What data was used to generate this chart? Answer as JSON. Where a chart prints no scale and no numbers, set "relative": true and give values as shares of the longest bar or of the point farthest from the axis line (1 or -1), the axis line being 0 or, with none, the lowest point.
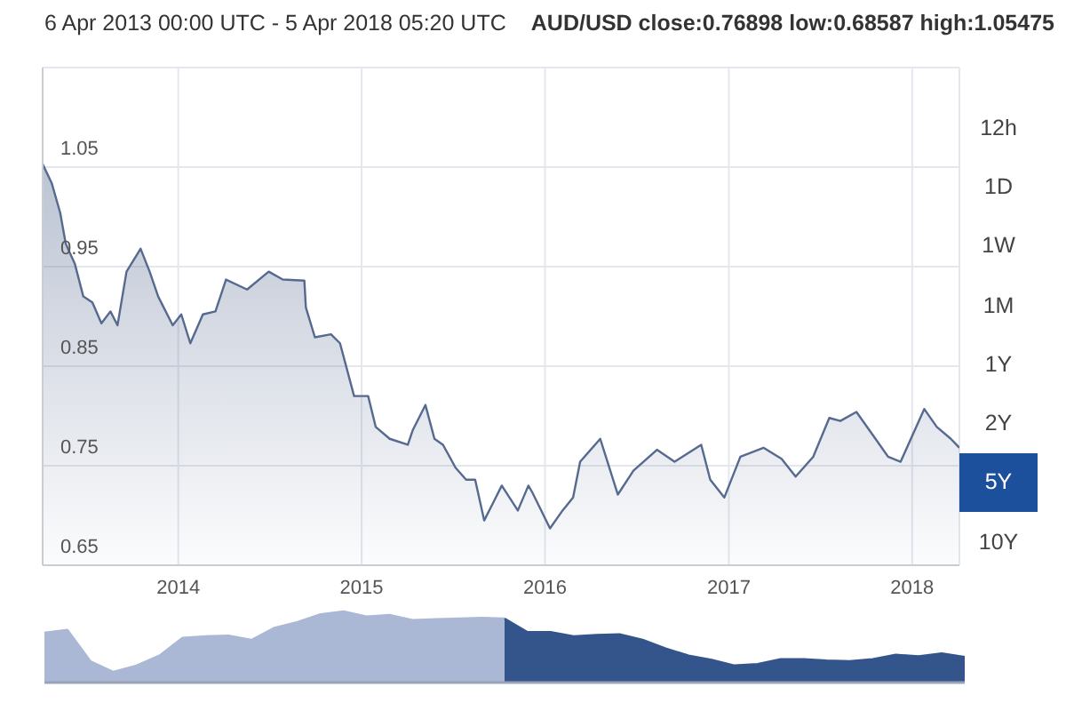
{
  "chart_data": [
    {
      "type": "area",
      "title": "6 Apr 2013 00:00 UTC - 5 Apr 2018 05:20 UTC",
      "subtitle": "AUD/USD close:0.76898 low:0.68587 high:1.05475",
      "color": "#56698f",
      "grid": true,
      "xlim": [
        "2013-04-06",
        "2018-04-05"
      ],
      "xticks": [
        "2014",
        "2015",
        "2016",
        "2017",
        "2018"
      ],
      "ylim": [
        0.65,
        1.15
      ],
      "yticks": [
        0.65,
        0.75,
        0.85,
        0.95,
        1.05
      ],
      "annotations": [
        "12h",
        "1D",
        "1W",
        "1M",
        "1Y",
        "2Y",
        "5Y",
        "10Y"
      ],
      "x": [
        "2013-04-06",
        "2013-04-24",
        "2013-05-11",
        "2013-05-22",
        "2013-06-09",
        "2013-06-26",
        "2013-07-14",
        "2013-08-01",
        "2013-08-19",
        "2013-09-02",
        "2013-09-20",
        "2013-10-18",
        "2013-11-05",
        "2013-11-22",
        "2013-12-21",
        "2014-01-07",
        "2014-01-25",
        "2014-02-19",
        "2014-03-16",
        "2014-04-06",
        "2014-05-18",
        "2014-06-30",
        "2014-07-28",
        "2014-09-09",
        "2014-09-12",
        "2014-09-30",
        "2014-11-01",
        "2014-11-19",
        "2014-12-17",
        "2015-01-14",
        "2015-01-29",
        "2015-02-26",
        "2015-04-03",
        "2015-04-13",
        "2015-05-08",
        "2015-05-26",
        "2015-06-12",
        "2015-07-07",
        "2015-07-28",
        "2015-08-15",
        "2015-09-02",
        "2015-09-20",
        "2015-10-07",
        "2015-11-08",
        "2015-11-29",
        "2015-12-07",
        "2016-01-11",
        "2016-02-05",
        "2016-02-26",
        "2016-03-11",
        "2016-04-20",
        "2016-05-25",
        "2016-06-25",
        "2016-08-11",
        "2016-09-15",
        "2016-11-07",
        "2016-11-25",
        "2016-12-23",
        "2017-01-24",
        "2017-03-11",
        "2017-04-16",
        "2017-05-14",
        "2017-06-18",
        "2017-07-20",
        "2017-08-11",
        "2017-09-12",
        "2017-10-20",
        "2017-11-14",
        "2017-12-09",
        "2018-01-25",
        "2018-02-19",
        "2018-03-19",
        "2018-04-05"
      ],
      "values": [
        1.053,
        1.034,
        1.004,
        0.973,
        0.953,
        0.92,
        0.914,
        0.893,
        0.905,
        0.891,
        0.945,
        0.968,
        0.945,
        0.92,
        0.891,
        0.902,
        0.873,
        0.902,
        0.905,
        0.937,
        0.927,
        0.945,
        0.937,
        0.936,
        0.909,
        0.879,
        0.882,
        0.873,
        0.82,
        0.82,
        0.789,
        0.777,
        0.771,
        0.786,
        0.811,
        0.777,
        0.771,
        0.748,
        0.736,
        0.736,
        0.695,
        0.713,
        0.73,
        0.705,
        0.73,
        0.723,
        0.687,
        0.705,
        0.718,
        0.754,
        0.777,
        0.721,
        0.745,
        0.766,
        0.754,
        0.771,
        0.736,
        0.718,
        0.759,
        0.768,
        0.757,
        0.739,
        0.759,
        0.798,
        0.795,
        0.804,
        0.777,
        0.759,
        0.754,
        0.807,
        0.789,
        0.777,
        0.768
      ]
    },
    {
      "type": "area",
      "relative": true,
      "categories": [
        null,
        null,
        null,
        null,
        null,
        null,
        null,
        null,
        null,
        null,
        null,
        null,
        null,
        null,
        null,
        null,
        null,
        null,
        null,
        null,
        null,
        null,
        null,
        null,
        null,
        null,
        null,
        null,
        null,
        null,
        null,
        null,
        null,
        null,
        null,
        null,
        null,
        null,
        null,
        null,
        null
      ],
      "series": [
        {
          "color": "#aab8d6",
          "values": [
            0.7,
            0.74,
            0.3,
            0.15,
            0.24,
            0.38,
            0.63,
            0.65,
            0.66,
            0.6,
            0.77,
            0.85,
            0.96,
            1,
            0.93,
            0.95,
            0.88,
            0.89,
            0.9,
            0.91,
            0.9,
            null,
            null,
            null,
            null,
            null,
            null,
            null,
            null,
            null,
            null,
            null,
            null,
            null,
            null,
            null,
            null,
            null,
            null,
            null,
            null
          ]
        },
        {
          "color": "#34548c",
          "values": [
            null,
            null,
            null,
            null,
            null,
            null,
            null,
            null,
            null,
            null,
            null,
            null,
            null,
            null,
            null,
            null,
            null,
            null,
            null,
            null,
            0.9,
            0.71,
            0.71,
            0.65,
            0.67,
            0.68,
            0.6,
            0.48,
            0.38,
            0.32,
            0.24,
            0.26,
            0.33,
            0.33,
            0.31,
            0.3,
            0.33,
            0.39,
            0.37,
            0.41,
            0.36
          ]
        }
      ]
    }
  ]
}
